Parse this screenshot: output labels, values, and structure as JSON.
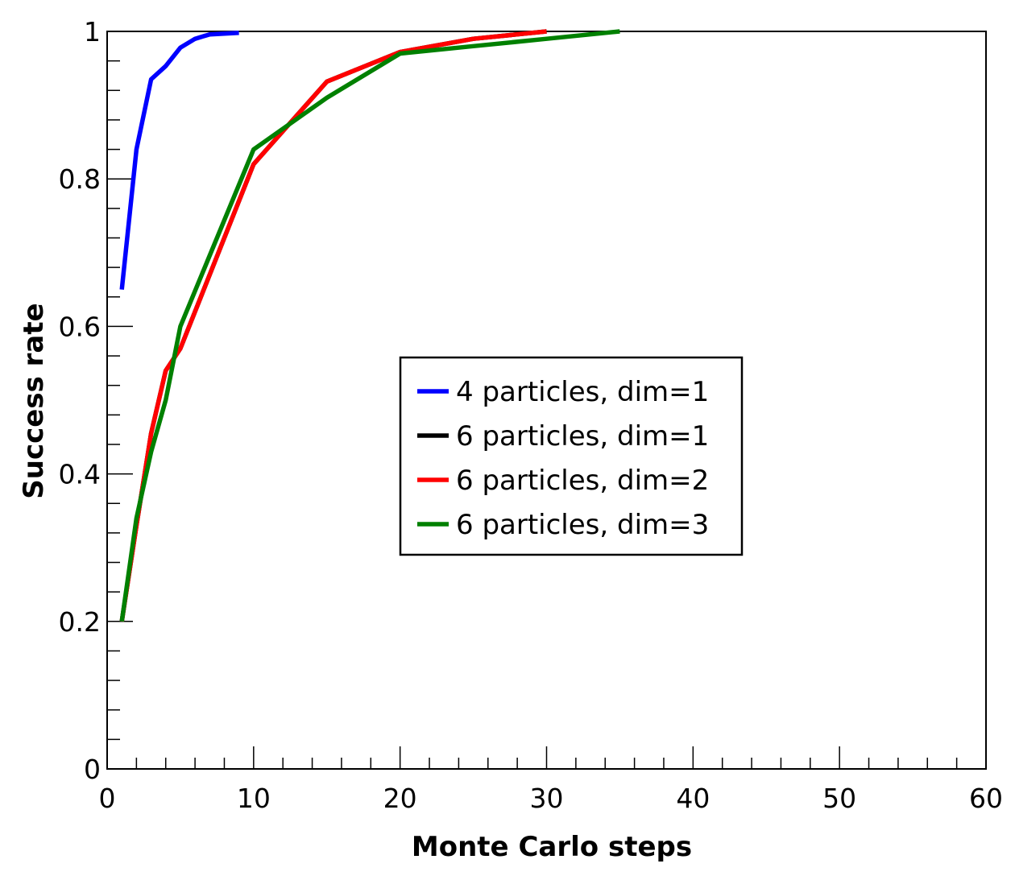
{
  "chart_data": {
    "type": "line",
    "xlabel": "Monte Carlo steps",
    "ylabel": "Success rate",
    "xlim": [
      0,
      60
    ],
    "ylim": [
      0,
      1
    ],
    "x_ticks": [
      0,
      10,
      20,
      30,
      40,
      50,
      60
    ],
    "x_tick_labels": [
      "0",
      "10",
      "20",
      "30",
      "40",
      "50",
      "60"
    ],
    "y_ticks": [
      0,
      0.2,
      0.4,
      0.6,
      0.8,
      1
    ],
    "y_tick_labels": [
      "0",
      "0.2",
      "0.4",
      "0.6",
      "0.8",
      "1"
    ],
    "grid": false,
    "legend_position": "center",
    "series": [
      {
        "name": "4 particles, dim=1",
        "color": "#0000ff",
        "x": [
          1,
          2,
          3,
          4,
          5,
          6,
          7,
          8,
          9
        ],
        "y": [
          0.65,
          0.84,
          0.935,
          0.953,
          0.978,
          0.99,
          0.996,
          0.997,
          0.998
        ]
      },
      {
        "name": "6 particles, dim=1",
        "color": "#000000",
        "x": [
          1,
          2,
          3,
          4,
          5,
          10,
          15,
          20,
          25,
          30
        ],
        "y": [
          0.2,
          0.33,
          0.455,
          0.54,
          0.57,
          0.82,
          0.932,
          0.972,
          0.99,
          1.0
        ]
      },
      {
        "name": "6 particles, dim=2",
        "color": "#ff0000",
        "x": [
          1,
          2,
          3,
          4,
          5,
          10,
          15,
          20,
          25,
          30
        ],
        "y": [
          0.2,
          0.33,
          0.455,
          0.54,
          0.57,
          0.82,
          0.932,
          0.972,
          0.99,
          1.0
        ]
      },
      {
        "name": "6 particles, dim=3",
        "color": "#008000",
        "x": [
          1,
          2,
          3,
          4,
          5,
          10,
          15,
          20,
          25,
          30,
          35
        ],
        "y": [
          0.2,
          0.34,
          0.43,
          0.5,
          0.6,
          0.84,
          0.91,
          0.97,
          0.98,
          0.99,
          1.0
        ]
      }
    ]
  }
}
